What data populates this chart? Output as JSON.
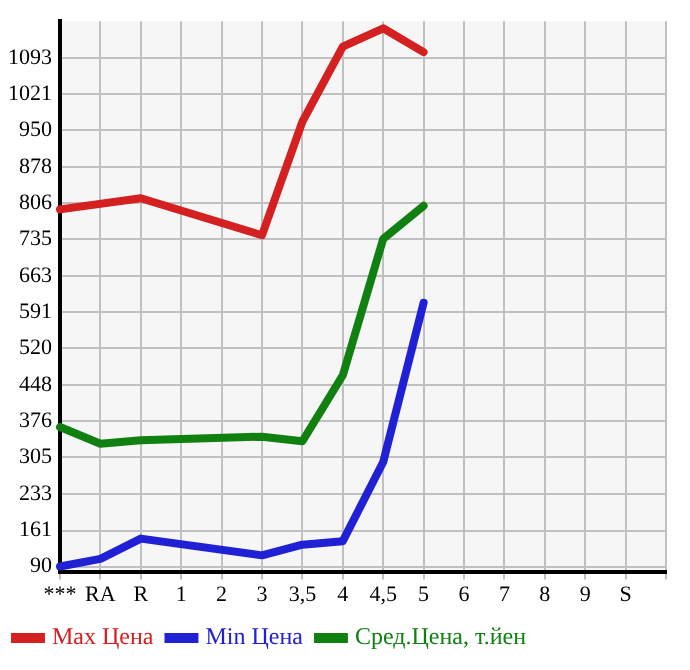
{
  "chart_data": {
    "type": "line",
    "categories": [
      "***",
      "RA",
      "R",
      "1",
      "2",
      "3",
      "3,5",
      "4",
      "4,5",
      "5",
      "6",
      "7",
      "8",
      "9",
      "S",
      null
    ],
    "series": [
      {
        "name": "Max Цена",
        "color": "#d42020",
        "values": [
          794,
          null,
          816,
          null,
          null,
          743,
          967,
          1115,
          1151,
          1104,
          null,
          null,
          null,
          null,
          null,
          null
        ]
      },
      {
        "name": "Min Цена",
        "color": "#2020d4",
        "values": [
          90,
          105,
          145,
          null,
          null,
          112,
          133,
          140,
          296,
          610,
          null,
          null,
          null,
          null,
          null,
          null
        ]
      },
      {
        "name": "Сред.Цена, т.йен",
        "color": "#108010",
        "values": [
          365,
          332,
          339,
          null,
          null,
          346,
          337,
          467,
          736,
          801,
          null,
          null,
          null,
          null,
          null,
          null
        ]
      }
    ],
    "ylim": [
      80,
      1165
    ],
    "yticks": [
      90,
      161,
      233,
      305,
      376,
      448,
      520,
      591,
      663,
      735,
      806,
      878,
      950,
      1021,
      1093
    ],
    "grid": true,
    "legend": "bottom",
    "marker": "none",
    "line_style": "solid"
  }
}
